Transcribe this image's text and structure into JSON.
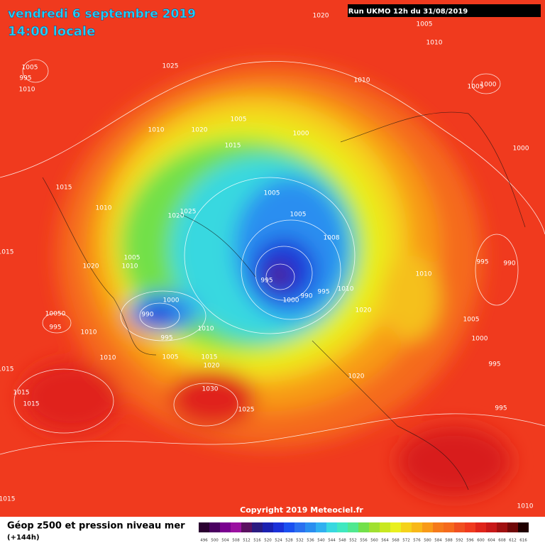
{
  "header": {
    "date": "vendredi 6 septembre 2019",
    "time": "14:00 locale",
    "run": "Run UKMO 12h du 31/08/2019"
  },
  "isobar_labels": [
    "1020",
    "1005",
    "1010",
    "1005",
    "995",
    "1010",
    "1025",
    "1010",
    "1005",
    "1000",
    "1005",
    "1010",
    "1020",
    "1000",
    "1015",
    "1000",
    "1015",
    "1005",
    "1010",
    "1025",
    "1020",
    "1005",
    "1008",
    "1005",
    "1020",
    "1010",
    "995",
    "990",
    "995",
    "1010",
    "1015",
    "990",
    "995",
    "1010",
    "1000",
    "1000",
    "1020",
    "10050",
    "990",
    "995",
    "1005",
    "1010",
    "1010",
    "995",
    "1000",
    "1005",
    "1015",
    "1010",
    "1020",
    "995",
    "1015",
    "1020",
    "1030",
    "1015",
    "1015",
    "1025",
    "995",
    "1015",
    "1010"
  ],
  "footer": {
    "copyright": "Copyright 2019 Meteociel.fr",
    "legend_title": "Géop z500 et pression niveau mer",
    "lead": "(+144h)",
    "scale": [
      496,
      500,
      504,
      508,
      512,
      516,
      520,
      524,
      528,
      532,
      536,
      540,
      544,
      548,
      552,
      556,
      560,
      564,
      568,
      572,
      576,
      580,
      584,
      588,
      592,
      596,
      600,
      604,
      608,
      612,
      616
    ]
  }
}
